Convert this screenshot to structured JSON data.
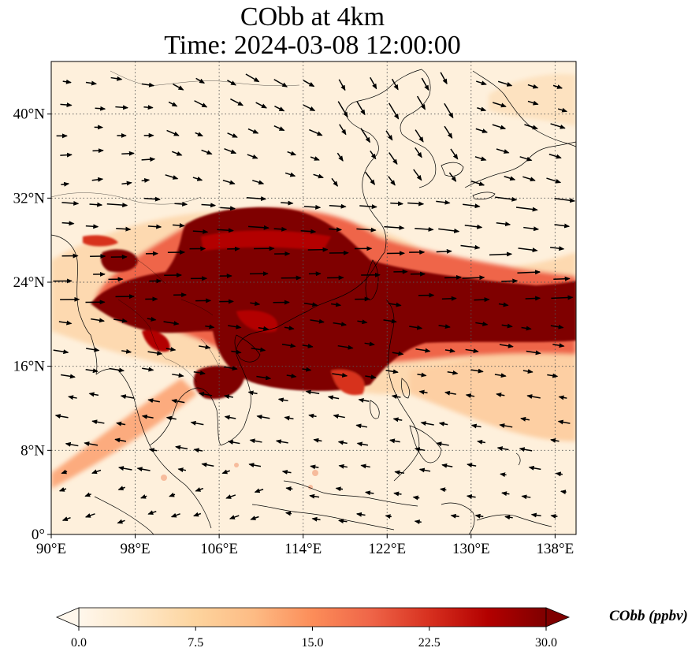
{
  "figure": {
    "title_line1": "CObb at 4km",
    "title_line2": "Time: 2024-03-08 12:00:00"
  },
  "map": {
    "projection": "PlateCarree",
    "lon_range": [
      90,
      140
    ],
    "lat_range": [
      0,
      45
    ],
    "lon_ticks": [
      {
        "value": 90,
        "label": "90°E"
      },
      {
        "value": 98,
        "label": "98°E"
      },
      {
        "value": 106,
        "label": "106°E"
      },
      {
        "value": 114,
        "label": "114°E"
      },
      {
        "value": 122,
        "label": "122°E"
      },
      {
        "value": 130,
        "label": "130°E"
      },
      {
        "value": 138,
        "label": "138°E"
      }
    ],
    "lat_ticks": [
      {
        "value": 0,
        "label": "0°"
      },
      {
        "value": 8,
        "label": "8°N"
      },
      {
        "value": 16,
        "label": "16°N"
      },
      {
        "value": 24,
        "label": "24°N"
      },
      {
        "value": 32,
        "label": "32°N"
      },
      {
        "value": 40,
        "label": "40°N"
      }
    ],
    "gridlines": "dotted",
    "field_variable": "CObb",
    "wind_vectors": true
  },
  "colorbar": {
    "label": "CObb (ppbv)",
    "colormap": "OrRd",
    "range": [
      0.0,
      30.0
    ],
    "ticks": [
      "0.0",
      "7.5",
      "15.0",
      "22.5",
      "30.0"
    ],
    "extend": "both",
    "colors": [
      "#fff7ec",
      "#fee8c8",
      "#fdd49e",
      "#fdbb84",
      "#fc8d59",
      "#ef6548",
      "#d7301f",
      "#b30000",
      "#7f0000"
    ]
  }
}
